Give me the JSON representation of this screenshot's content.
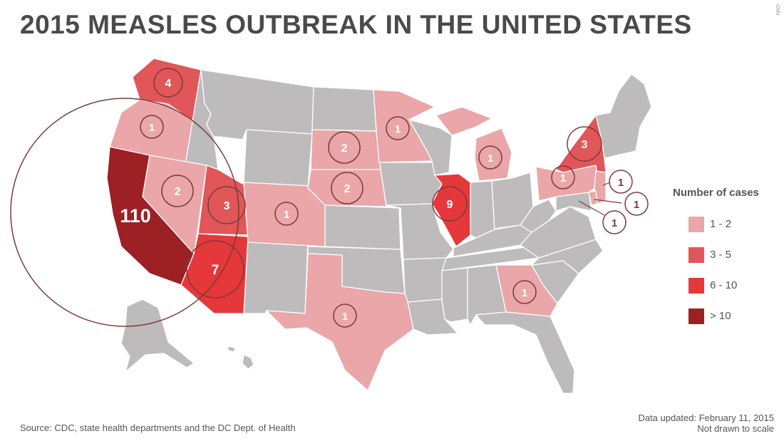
{
  "title": "2015 MEASLES OUTBREAK IN THE UNITED STATES",
  "watermark": "CNN",
  "legend": {
    "title": "Number of cases",
    "items": [
      {
        "label": "1 - 2",
        "color": "#eaa6a8"
      },
      {
        "label": "3 - 5",
        "color": "#e15658"
      },
      {
        "label": "6 - 10",
        "color": "#e5383b"
      },
      {
        "label": "> 10",
        "color": "#9c2024"
      }
    ]
  },
  "colors": {
    "base_state": "#bdbbbc",
    "border": "#ffffff",
    "circle": "#7d3a3a"
  },
  "states": [
    {
      "name": "California",
      "cases": "110"
    },
    {
      "name": "Washington",
      "cases": "4"
    },
    {
      "name": "Oregon",
      "cases": "1"
    },
    {
      "name": "Nevada",
      "cases": "2"
    },
    {
      "name": "Utah",
      "cases": "3"
    },
    {
      "name": "Arizona",
      "cases": "7"
    },
    {
      "name": "Colorado",
      "cases": "1"
    },
    {
      "name": "South Dakota",
      "cases": "2"
    },
    {
      "name": "Nebraska",
      "cases": "2"
    },
    {
      "name": "Minnesota",
      "cases": "1"
    },
    {
      "name": "Michigan",
      "cases": "1"
    },
    {
      "name": "Illinois",
      "cases": "9"
    },
    {
      "name": "New York",
      "cases": "3"
    },
    {
      "name": "Pennsylvania",
      "cases": "1"
    },
    {
      "name": "New Jersey",
      "cases": "1"
    },
    {
      "name": "Delaware",
      "cases": "1"
    },
    {
      "name": "District of Columbia",
      "cases": "1"
    },
    {
      "name": "Texas",
      "cases": "1"
    },
    {
      "name": "Georgia",
      "cases": "1"
    }
  ],
  "source": "Source: CDC, state health departments and the DC Dept. of Health",
  "updated": "Data updated: February 11, 2015",
  "note": "Not drawn to scale"
}
